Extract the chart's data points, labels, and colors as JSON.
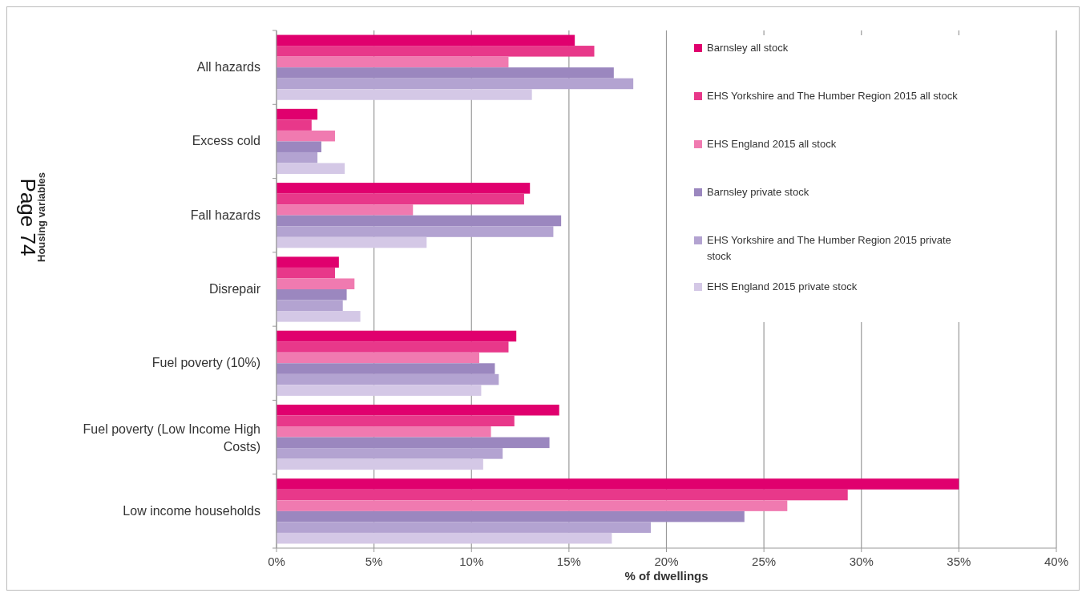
{
  "chart_data": {
    "type": "bar",
    "orientation": "horizontal",
    "xlabel": "% of dwellings",
    "ylabel": "Housing variables",
    "annotations": [
      "Page 74"
    ],
    "categories": [
      "All hazards",
      "Excess cold",
      "Fall hazards",
      "Disrepair",
      "Fuel poverty (10%)",
      "Fuel poverty (Low Income High Costs)",
      "Low income households"
    ],
    "series": [
      {
        "name": "Barnsley all stock",
        "color": "#e0006e",
        "values": [
          15.3,
          2.1,
          13.0,
          3.2,
          12.3,
          14.5,
          35.0
        ]
      },
      {
        "name": "EHS Yorkshire and The Humber Region 2015 all stock",
        "color": "#e8388a",
        "values": [
          16.3,
          1.8,
          12.7,
          3.0,
          11.9,
          12.2,
          29.3
        ]
      },
      {
        "name": "EHS England 2015 all stock",
        "color": "#f07ab0",
        "values": [
          11.9,
          3.0,
          7.0,
          4.0,
          10.4,
          11.0,
          26.2
        ]
      },
      {
        "name": "Barnsley private stock",
        "color": "#9b87bf",
        "values": [
          17.3,
          2.3,
          14.6,
          3.6,
          11.2,
          14.0,
          24.0
        ]
      },
      {
        "name": "EHS Yorkshire and The Humber Region 2015 private stock",
        "color": "#b3a3d1",
        "values": [
          18.3,
          2.1,
          14.2,
          3.4,
          11.4,
          11.6,
          19.2
        ]
      },
      {
        "name": "EHS England 2015 private stock",
        "color": "#d4c8e6",
        "values": [
          13.1,
          3.5,
          7.7,
          4.3,
          10.5,
          10.6,
          17.2
        ]
      }
    ],
    "xlim": [
      0,
      40
    ],
    "xticks": [
      {
        "value": 0,
        "label": "0%"
      },
      {
        "value": 5,
        "label": "5%"
      },
      {
        "value": 10,
        "label": "10%"
      },
      {
        "value": 15,
        "label": "15%"
      },
      {
        "value": 20,
        "label": "20%"
      },
      {
        "value": 25,
        "label": "25%"
      },
      {
        "value": 30,
        "label": "30%"
      },
      {
        "value": 35,
        "label": "35%"
      },
      {
        "value": 40,
        "label": "40%"
      }
    ],
    "grid": "x",
    "legend": "top right"
  }
}
